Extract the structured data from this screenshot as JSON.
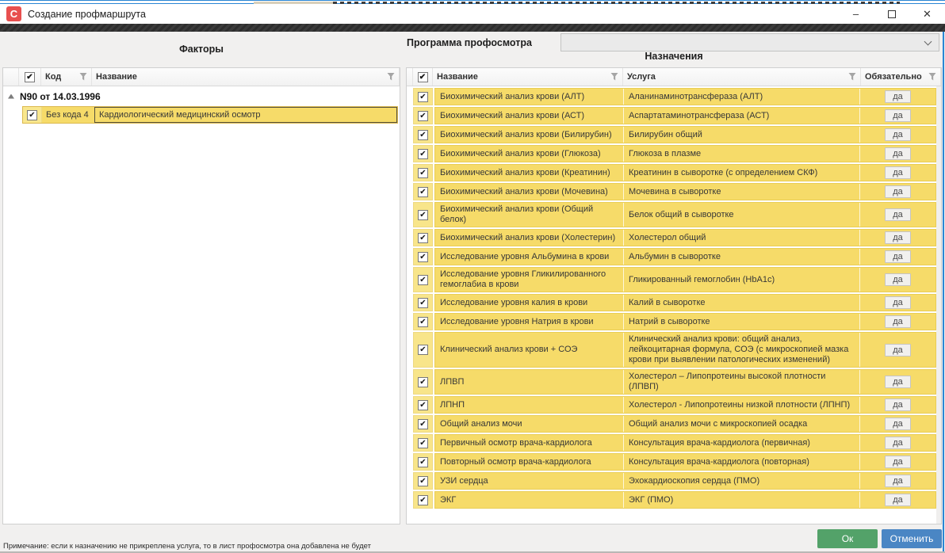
{
  "window": {
    "title": "Создание профмаршрута",
    "app_icon_letter": "С",
    "controls": {
      "minimize": "–",
      "close": "✕"
    }
  },
  "left_panel": {
    "title": "Факторы",
    "columns": {
      "code": "Код",
      "name": "Название"
    },
    "group_row": "N90 от 14.03.1996",
    "factor_row": {
      "checked": true,
      "code": "Без кода 4",
      "name": "Кардиологический медицинский осмотр"
    }
  },
  "right_panel": {
    "program_label": "Программа профосмотра",
    "program_value": "",
    "title": "Назначения",
    "columns": {
      "name": "Название",
      "service": "Услуга",
      "required": "Обязательно"
    },
    "rows": [
      {
        "name": "Биохимический анализ крови (АЛТ)",
        "service": "Аланинаминотрансфераза (АЛТ)",
        "required": "да"
      },
      {
        "name": "Биохимический анализ крови (АСТ)",
        "service": "Аспартатаминотрансфераза (АСТ)",
        "required": "да"
      },
      {
        "name": "Биохимический анализ крови (Билирубин)",
        "service": "Билирубин общий",
        "required": "да"
      },
      {
        "name": "Биохимический анализ крови (Глюкоза)",
        "service": "Глюкоза в плазме",
        "required": "да"
      },
      {
        "name": "Биохимический анализ крови (Креатинин)",
        "service": "Креатинин в сыворотке (с определением СКФ)",
        "required": "да"
      },
      {
        "name": "Биохимический анализ крови (Мочевина)",
        "service": "Мочевина в сыворотке",
        "required": "да"
      },
      {
        "name": "Биохимический анализ крови (Общий белок)",
        "service": "Белок общий в сыворотке",
        "required": "да"
      },
      {
        "name": "Биохимический анализ крови (Холестерин)",
        "service": "Холестерол общий",
        "required": "да"
      },
      {
        "name": "Исследование уровня Альбумина в крови",
        "service": "Альбумин в сыворотке",
        "required": "да"
      },
      {
        "name": "Исследование уровня Гликилированного гемоглабиа в крови",
        "service": "Гликированный гемоглобин (HbA1c)",
        "required": "да"
      },
      {
        "name": "Исследование уровня калия в крови",
        "service": "Калий в сыворотке",
        "required": "да"
      },
      {
        "name": "Исследование уровня Натрия в крови",
        "service": "Натрий в сыворотке",
        "required": "да"
      },
      {
        "name": "Клинический анализ крови + СОЭ",
        "service": "Клинический анализ крови: общий анализ, лейкоцитарная формула, СОЭ (с микроскопией мазка крови при выявлении патологических изменений)",
        "required": "да"
      },
      {
        "name": "ЛПВП",
        "service": "Холестерол – Липопротеины высокой плотности (ЛПВП)",
        "required": "да"
      },
      {
        "name": "ЛПНП",
        "service": "Холестерол - Липопротеины низкой плотности (ЛПНП)",
        "required": "да"
      },
      {
        "name": "Общий анализ мочи",
        "service": "Общий анализ мочи с микроскопией осадка",
        "required": "да"
      },
      {
        "name": "Первичный осмотр врача-кардиолога",
        "service": "Консультация врача-кардиолога (первичная)",
        "required": "да"
      },
      {
        "name": "Повторный осмотр врача-кардиолога",
        "service": "Консультация врача-кардиолога (повторная)",
        "required": "да"
      },
      {
        "name": "УЗИ сердца",
        "service": "Эхокардиоскопия сердца (ПМО)",
        "required": "да"
      },
      {
        "name": "ЭКГ",
        "service": "ЭКГ (ПМО)",
        "required": "да"
      }
    ]
  },
  "footer": {
    "note": "Примечание: если к назначению не прикреплена услуга, то в лист профосмотра она добавлена не будет",
    "ok_label": "Ок",
    "cancel_label": "Отменить"
  },
  "colors": {
    "row_yellow": "#f6db69",
    "row_yellow_light": "#f8e58a",
    "ok_green": "#53a269",
    "cancel_blue": "#4a86c4",
    "app_icon_red": "#e8504f",
    "background_window_blue": "#2a86d4"
  },
  "icons": {
    "check": "✔"
  }
}
